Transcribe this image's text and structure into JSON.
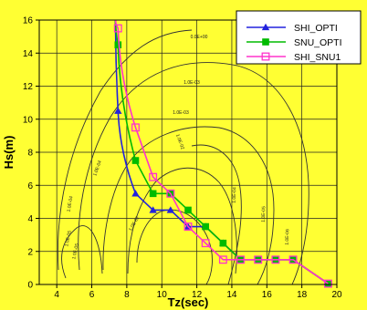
{
  "chart_data": {
    "type": "line",
    "xlabel": "Tz(sec)",
    "ylabel": "Hs(m)",
    "xlim": [
      3,
      20
    ],
    "ylim": [
      0,
      16
    ],
    "xticks": [
      4,
      6,
      8,
      10,
      12,
      14,
      16,
      18,
      20
    ],
    "yticks": [
      0,
      2,
      4,
      6,
      8,
      10,
      12,
      14,
      16
    ],
    "grid": true,
    "legend_position": "top-right",
    "series": [
      {
        "name": "SHI_OPTI",
        "color": "#2222dd",
        "marker": "triangle",
        "points": [
          [
            7.5,
            10.5
          ],
          [
            8.5,
            5.5
          ],
          [
            9.5,
            4.5
          ],
          [
            10.5,
            4.5
          ],
          [
            11.5,
            3.5
          ],
          [
            12.5,
            3.5
          ],
          [
            13.5,
            2.5
          ],
          [
            14.5,
            1.5
          ],
          [
            15.5,
            1.5
          ],
          [
            16.5,
            1.5
          ],
          [
            17.5,
            1.5
          ],
          [
            19.5,
            0.05
          ]
        ]
      },
      {
        "name": "SNU_OPTI",
        "color": "#00bb00",
        "marker": "square",
        "points": [
          [
            7.5,
            14.5
          ],
          [
            8.5,
            7.5
          ],
          [
            9.5,
            5.5
          ],
          [
            10.5,
            5.5
          ],
          [
            11.5,
            4.5
          ],
          [
            12.5,
            3.5
          ],
          [
            13.5,
            2.5
          ],
          [
            14.5,
            1.5
          ],
          [
            15.5,
            1.5
          ],
          [
            16.5,
            1.5
          ],
          [
            17.5,
            1.5
          ],
          [
            19.5,
            0.05
          ]
        ]
      },
      {
        "name": "SHI_SNU1",
        "color": "#ff33cc",
        "marker": "open-square",
        "points": [
          [
            7.5,
            15.5
          ],
          [
            8.5,
            9.5
          ],
          [
            9.5,
            6.5
          ],
          [
            10.5,
            5.5
          ],
          [
            11.5,
            3.5
          ],
          [
            12.5,
            2.5
          ],
          [
            13.5,
            1.5
          ],
          [
            14.5,
            1.5
          ],
          [
            15.5,
            1.5
          ],
          [
            16.5,
            1.5
          ],
          [
            17.5,
            1.5
          ],
          [
            19.5,
            0.05
          ]
        ]
      }
    ],
    "contour_labels": [
      "0.0E+00",
      "1.0E-03",
      "1.0E-03",
      "1.0E-02",
      "1.0E-02",
      "1.0E-04",
      "1.0E-04",
      "1.0E-05",
      "1.0E-05",
      "1.0E-04",
      "1.0E-05",
      "1.0E-06"
    ]
  }
}
